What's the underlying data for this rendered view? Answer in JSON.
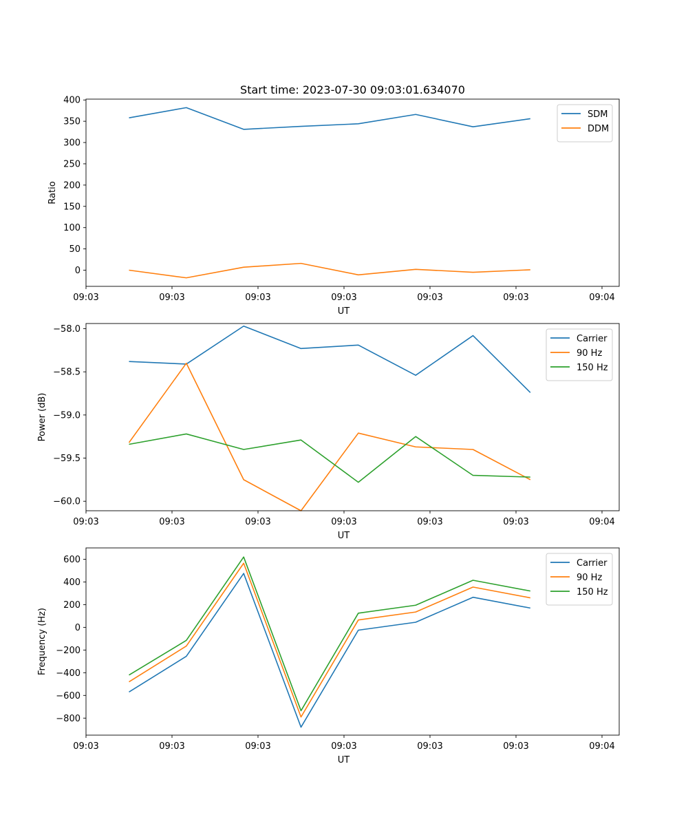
{
  "chart_data": [
    {
      "type": "line",
      "title": "Start time: 2023-07-30 09:03:01.634070",
      "xlabel": "UT",
      "ylabel": "Ratio",
      "x": [
        0,
        1,
        2,
        3,
        4,
        5,
        6,
        7
      ],
      "xlim": [
        -0.75,
        8.55
      ],
      "xticks": [
        -0.75,
        0.75,
        2.25,
        3.75,
        5.25,
        6.75,
        8.25
      ],
      "xtick_labels": [
        "09:03",
        "09:03",
        "09:03",
        "09:03",
        "09:03",
        "09:03",
        "09:04"
      ],
      "ylim": [
        -38,
        402
      ],
      "yticks": [
        0,
        50,
        100,
        150,
        200,
        250,
        300,
        350,
        400
      ],
      "ytick_labels": [
        "0",
        "50",
        "100",
        "150",
        "200",
        "250",
        "300",
        "350",
        "400"
      ],
      "legend_position": "top-right",
      "series": [
        {
          "name": "SDM",
          "color": "#1f77b4",
          "values": [
            358,
            382,
            331,
            338,
            344,
            366,
            337,
            356
          ]
        },
        {
          "name": "DDM",
          "color": "#ff7f0e",
          "values": [
            0,
            -18,
            7,
            16,
            -11,
            2,
            -5,
            1
          ]
        }
      ]
    },
    {
      "type": "line",
      "title": "",
      "xlabel": "UT",
      "ylabel": "Power (dB)",
      "x": [
        0,
        1,
        2,
        3,
        4,
        5,
        6,
        7
      ],
      "xlim": [
        -0.75,
        8.55
      ],
      "xticks": [
        -0.75,
        0.75,
        2.25,
        3.75,
        5.25,
        6.75,
        8.25
      ],
      "xtick_labels": [
        "09:03",
        "09:03",
        "09:03",
        "09:03",
        "09:03",
        "09:03",
        "09:04"
      ],
      "ylim": [
        -60.11,
        -57.94
      ],
      "yticks": [
        -60.0,
        -59.5,
        -59.0,
        -58.5,
        -58.0
      ],
      "ytick_labels": [
        "−60.0",
        "−59.5",
        "−59.0",
        "−58.5",
        "−58.0"
      ],
      "legend_position": "top-right",
      "series": [
        {
          "name": "Carrier",
          "color": "#1f77b4",
          "values": [
            -58.38,
            -58.41,
            -57.97,
            -58.23,
            -58.19,
            -58.54,
            -58.08,
            -58.74
          ]
        },
        {
          "name": "90 Hz",
          "color": "#ff7f0e",
          "values": [
            -59.32,
            -58.4,
            -59.75,
            -60.11,
            -59.21,
            -59.37,
            -59.4,
            -59.75
          ]
        },
        {
          "name": "150 Hz",
          "color": "#2ca02c",
          "values": [
            -59.34,
            -59.22,
            -59.4,
            -59.29,
            -59.78,
            -59.25,
            -59.7,
            -59.72
          ]
        }
      ]
    },
    {
      "type": "line",
      "title": "",
      "xlabel": "UT",
      "ylabel": "Frequency (Hz)",
      "x": [
        0,
        1,
        2,
        3,
        4,
        5,
        6,
        7
      ],
      "xlim": [
        -0.75,
        8.55
      ],
      "xticks": [
        -0.75,
        0.75,
        2.25,
        3.75,
        5.25,
        6.75,
        8.25
      ],
      "xtick_labels": [
        "09:03",
        "09:03",
        "09:03",
        "09:03",
        "09:03",
        "09:03",
        "09:04"
      ],
      "ylim": [
        -950,
        700
      ],
      "yticks": [
        -800,
        -600,
        -400,
        -200,
        0,
        200,
        400,
        600
      ],
      "ytick_labels": [
        "−800",
        "−600",
        "−400",
        "−200",
        "0",
        "200",
        "400",
        "600"
      ],
      "legend_position": "top-right",
      "series": [
        {
          "name": "Carrier",
          "color": "#1f77b4",
          "values": [
            -570,
            -255,
            475,
            -880,
            -25,
            45,
            265,
            170
          ]
        },
        {
          "name": "90 Hz",
          "color": "#ff7f0e",
          "values": [
            -480,
            -165,
            565,
            -790,
            65,
            135,
            355,
            260
          ]
        },
        {
          "name": "150 Hz",
          "color": "#2ca02c",
          "values": [
            -420,
            -115,
            620,
            -735,
            125,
            195,
            415,
            320
          ]
        }
      ]
    }
  ]
}
